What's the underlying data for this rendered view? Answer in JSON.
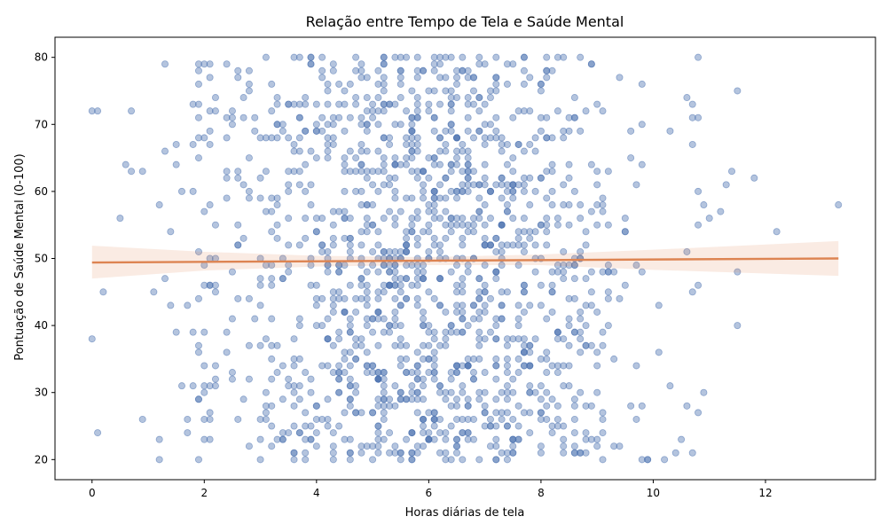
{
  "chart_data": {
    "type": "scatter",
    "title": "Relação entre Tempo de Tela e Saúde Mental",
    "xlabel": "Horas diárias de tela",
    "ylabel": "Pontuação de Saúde Mental (0-100)",
    "xlim": [
      -0.66,
      13.96
    ],
    "ylim": [
      17,
      83
    ],
    "xticks": [
      "0",
      "2",
      "4",
      "6",
      "8",
      "10",
      "12"
    ],
    "yticks": [
      "20",
      "30",
      "40",
      "50",
      "60",
      "70",
      "80"
    ],
    "grid": false,
    "legend": false,
    "n_points": 1500,
    "x_mean": 6.0,
    "x_sd": 2.0,
    "y_uniform_range": [
      20,
      80
    ],
    "outlier_points": [
      [
        0.0,
        72
      ],
      [
        0.1,
        72
      ],
      [
        0.0,
        38
      ],
      [
        0.1,
        24
      ],
      [
        0.2,
        45
      ],
      [
        0.5,
        56
      ],
      [
        0.6,
        64
      ],
      [
        0.7,
        63
      ],
      [
        0.7,
        72
      ],
      [
        0.9,
        63
      ],
      [
        0.9,
        26
      ],
      [
        1.1,
        45
      ],
      [
        1.2,
        58
      ],
      [
        1.2,
        23
      ],
      [
        1.2,
        20
      ],
      [
        1.3,
        79
      ],
      [
        1.3,
        66
      ],
      [
        1.3,
        47
      ],
      [
        1.4,
        54
      ],
      [
        1.4,
        43
      ],
      [
        1.5,
        67
      ],
      [
        1.5,
        64
      ],
      [
        1.5,
        39
      ],
      [
        1.6,
        60
      ],
      [
        1.6,
        31
      ],
      [
        1.7,
        43
      ],
      [
        1.7,
        26
      ],
      [
        1.7,
        24
      ],
      [
        11.2,
        57
      ],
      [
        11.3,
        61
      ],
      [
        11.4,
        63
      ],
      [
        11.5,
        75
      ],
      [
        11.5,
        48
      ],
      [
        11.5,
        40
      ],
      [
        11.8,
        62
      ],
      [
        12.2,
        54
      ],
      [
        13.3,
        58
      ]
    ],
    "regression": {
      "intercept": 49.4,
      "slope": 0.045,
      "x_range": [
        0.0,
        13.3
      ],
      "ci_lower": [
        47.0,
        48.2,
        48.8,
        49.0,
        49.0,
        48.3,
        47.4
      ],
      "ci_upper": [
        51.9,
        51.0,
        50.4,
        50.2,
        50.6,
        51.3,
        52.6
      ],
      "ci_x": [
        0.0,
        2.0,
        4.0,
        6.0,
        8.0,
        10.0,
        13.3
      ]
    },
    "colors": {
      "points": "#4C72B0",
      "line": "#DD8452",
      "band": "#DD8452"
    }
  }
}
